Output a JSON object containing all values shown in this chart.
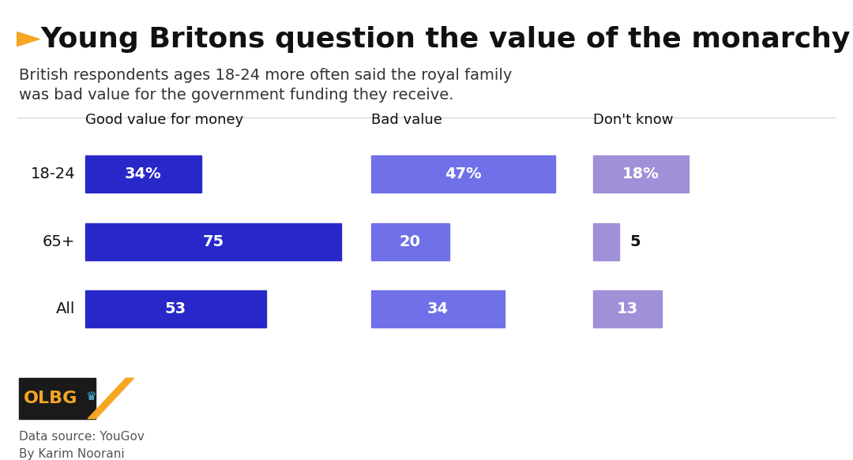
{
  "title": "Young Britons question the value of the monarchy",
  "subtitle": "British respondents ages 18-24 more often said the royal family\nwas bad value for the government funding they receive.",
  "col_headers": [
    "Good value for money",
    "Bad value",
    "Don't know"
  ],
  "row_labels": [
    "18-24",
    "65+",
    "All"
  ],
  "values": [
    [
      34,
      47,
      18
    ],
    [
      75,
      20,
      5
    ],
    [
      53,
      34,
      13
    ]
  ],
  "value_labels": [
    [
      "34%",
      "47%",
      "18%"
    ],
    [
      "75",
      "20",
      "5"
    ],
    [
      "53",
      "34",
      "13"
    ]
  ],
  "colors": [
    "#2828c8",
    "#7070e8",
    "#a090d8"
  ],
  "source": "Data source: YouGov\nBy Karim Noorani",
  "bg_color": "#ffffff",
  "title_color": "#111111",
  "subtitle_color": "#333333",
  "label_color": "#111111",
  "bar_text_color_inside": "#ffffff",
  "bar_text_color_outside": "#111111",
  "title_fontsize": 26,
  "subtitle_fontsize": 14,
  "header_fontsize": 13,
  "row_label_fontsize": 14,
  "bar_label_fontsize": 14,
  "source_fontsize": 11,
  "olbg_black": "#1a1a1a",
  "olbg_orange": "#f5a623",
  "arrow_color": "#f5a623",
  "panel_starts": [
    0.1,
    0.435,
    0.695
  ],
  "panel_ends": [
    0.42,
    0.665,
    0.82
  ],
  "bar_max_vals": [
    80,
    50,
    20
  ]
}
